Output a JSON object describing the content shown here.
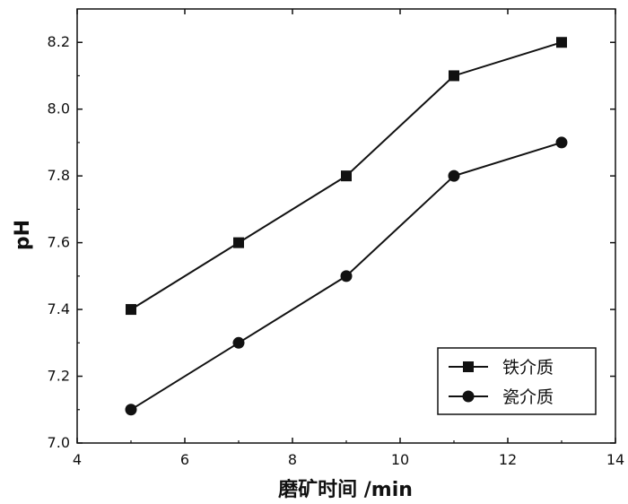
{
  "chart_data": {
    "type": "line",
    "title": "",
    "xlabel": "磨矿时间 /min",
    "ylabel": "pH",
    "xlim": [
      4,
      14
    ],
    "ylim": [
      7.0,
      8.3
    ],
    "x_ticks": [
      4,
      6,
      8,
      10,
      12,
      14
    ],
    "x_tick_labels": [
      "4",
      "6",
      "8",
      "10",
      "12",
      "14"
    ],
    "y_ticks": [
      7.0,
      7.2,
      7.4,
      7.6,
      7.8,
      8.0,
      8.2
    ],
    "y_tick_labels": [
      "7.0",
      "7.2",
      "7.4",
      "7.6",
      "7.8",
      "8.0",
      "8.2"
    ],
    "grid": false,
    "legend_position": "bottom-right",
    "x": [
      5,
      7,
      9,
      11,
      13
    ],
    "series": [
      {
        "name": "铁介质",
        "marker": "square",
        "values": [
          7.4,
          7.6,
          7.8,
          8.1,
          8.2
        ]
      },
      {
        "name": "瓷介质",
        "marker": "circle",
        "values": [
          7.1,
          7.3,
          7.5,
          7.8,
          7.9
        ]
      }
    ],
    "line_color": "#111111"
  }
}
